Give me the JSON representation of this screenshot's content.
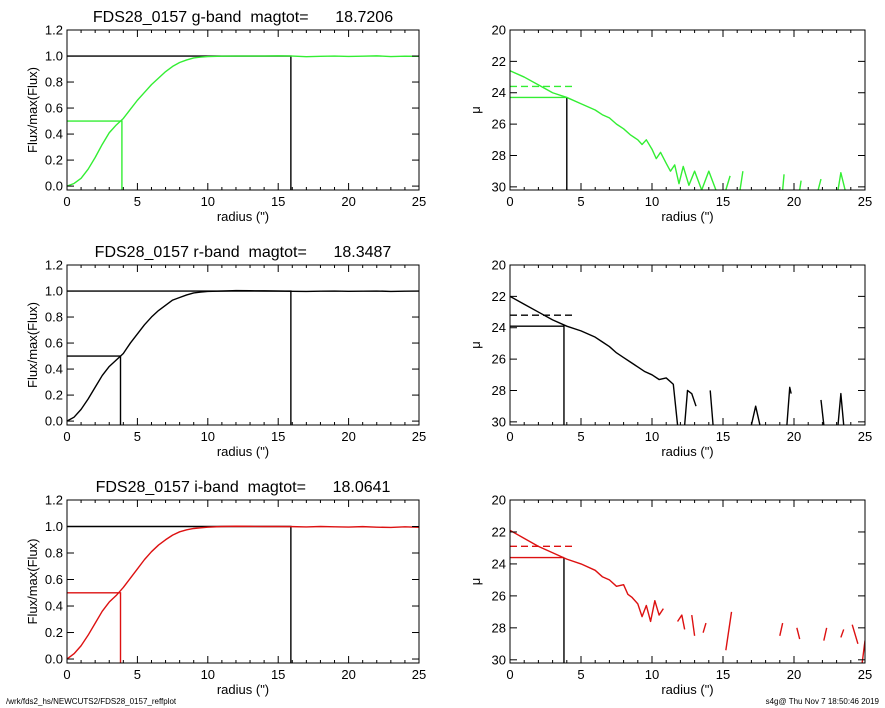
{
  "footer": {
    "path": "/wrk/fds2_hs/NEWCUTS2/FDS28_0157_reffplot",
    "stamp": "s4g@  Thu Nov  7 18:50:46 2019"
  },
  "chart_data": [
    {
      "type": "line",
      "title": "FDS28_0157 g-band  magtot=      18.7206",
      "xlabel": "radius (\")",
      "ylabel": "Flux/max(Flux)",
      "xlim": [
        0,
        25
      ],
      "ylim": [
        -0.03,
        1.2
      ],
      "xticks": [
        0,
        5,
        10,
        15,
        20,
        25
      ],
      "yticks": [
        0.0,
        0.2,
        0.4,
        0.6,
        0.8,
        1.0,
        1.2
      ],
      "ytick_labels": [
        "0.0",
        "0.2",
        "0.4",
        "0.6",
        "0.8",
        "1.0",
        "1.2"
      ],
      "color": "#33ee33",
      "series": [
        {
          "x": [
            0,
            0.5,
            1,
            1.5,
            2,
            2.5,
            3,
            3.5,
            4,
            4.5,
            5,
            5.5,
            6,
            6.5,
            7,
            7.5,
            8,
            8.5,
            9,
            9.5,
            10,
            11,
            12,
            13,
            14,
            15,
            16,
            17,
            18,
            19,
            20,
            21,
            22,
            23,
            24,
            25
          ],
          "y": [
            0,
            0.02,
            0.06,
            0.13,
            0.22,
            0.32,
            0.41,
            0.47,
            0.52,
            0.59,
            0.66,
            0.72,
            0.78,
            0.83,
            0.88,
            0.92,
            0.95,
            0.97,
            0.985,
            0.992,
            0.996,
            0.999,
            1.0,
            1.0,
            1.0,
            1.001,
            1.0,
            0.995,
            0.998,
            1.0,
            0.997,
            0.999,
            1.001,
            0.996,
            0.999,
            0.998
          ]
        }
      ],
      "reference_lines": [
        {
          "color": "#33ee33",
          "points": [
            [
              0,
              0.5
            ],
            [
              3.9,
              0.5
            ],
            [
              3.9,
              -0.03
            ]
          ]
        },
        {
          "color": "#000000",
          "points": [
            [
              0,
              1.0
            ],
            [
              15.9,
              1.0
            ],
            [
              15.9,
              -0.03
            ]
          ]
        }
      ]
    },
    {
      "type": "line",
      "xlabel": "radius (\")",
      "ylabel": "μ",
      "xlim": [
        0,
        25
      ],
      "ylim": [
        30.2,
        20
      ],
      "xticks": [
        0,
        5,
        10,
        15,
        20,
        25
      ],
      "yticks": [
        20,
        22,
        24,
        26,
        28,
        30
      ],
      "ytick_labels": [
        "20",
        "22",
        "24",
        "26",
        "28",
        "30"
      ],
      "color": "#33ee33",
      "series": [
        {
          "x": [
            0,
            1,
            2,
            3,
            4,
            5,
            6,
            6.5,
            7,
            7.5,
            8,
            8.5,
            9,
            9.3,
            9.6,
            10,
            10.3,
            10.6,
            11,
            11.3,
            11.6,
            11.9,
            12.2,
            12.6,
            13,
            13.5,
            14,
            14.5
          ],
          "y": [
            22.6,
            23.0,
            23.5,
            24.0,
            24.3,
            24.7,
            25.1,
            25.4,
            25.6,
            26.0,
            26.3,
            26.7,
            27.0,
            27.3,
            27.0,
            27.6,
            28.2,
            27.8,
            28.5,
            29.0,
            28.6,
            29.8,
            28.7,
            29.9,
            29.0,
            30.2,
            29.0,
            30.2
          ]
        },
        {
          "x": [
            15.2,
            15.5
          ],
          "y": [
            30.2,
            29.3
          ]
        },
        {
          "x": [
            16.2,
            16.4
          ],
          "y": [
            30.2,
            29.0
          ]
        },
        {
          "x": [
            19.2,
            19.3
          ],
          "y": [
            30.2,
            29.2
          ]
        },
        {
          "x": [
            20.4,
            20.5
          ],
          "y": [
            30.2,
            29.6
          ]
        },
        {
          "x": [
            21.7,
            21.9
          ],
          "y": [
            30.2,
            29.5
          ]
        },
        {
          "x": [
            23.1,
            23.3,
            23.6
          ],
          "y": [
            30.2,
            29.1,
            30.2
          ]
        }
      ],
      "reference_lines": [
        {
          "color": "#33ee33",
          "points": [
            [
              0,
              24.3
            ],
            [
              4.0,
              24.3
            ]
          ]
        },
        {
          "color": "#000000",
          "points": [
            [
              4.0,
              24.3
            ],
            [
              4.0,
              30.2
            ]
          ]
        },
        {
          "color": "#33ee33",
          "dashed": true,
          "points": [
            [
              0,
              23.6
            ],
            [
              4.5,
              23.6
            ]
          ]
        }
      ]
    },
    {
      "type": "line",
      "title": "FDS28_0157 r-band  magtot=      18.3487",
      "xlabel": "radius (\")",
      "ylabel": "Flux/max(Flux)",
      "xlim": [
        0,
        25
      ],
      "ylim": [
        -0.03,
        1.2
      ],
      "xticks": [
        0,
        5,
        10,
        15,
        20,
        25
      ],
      "yticks": [
        0.0,
        0.2,
        0.4,
        0.6,
        0.8,
        1.0,
        1.2
      ],
      "ytick_labels": [
        "0.0",
        "0.2",
        "0.4",
        "0.6",
        "0.8",
        "1.0",
        "1.2"
      ],
      "color": "#000000",
      "series": [
        {
          "x": [
            0,
            0.5,
            1,
            1.5,
            2,
            2.5,
            3,
            3.5,
            4,
            4.5,
            5,
            5.5,
            6,
            6.5,
            7,
            7.5,
            8,
            8.5,
            9,
            9.5,
            10,
            11,
            12,
            13,
            14,
            15,
            16,
            17,
            18,
            19,
            20,
            21,
            22,
            23,
            24,
            25
          ],
          "y": [
            0,
            0.03,
            0.09,
            0.17,
            0.26,
            0.35,
            0.42,
            0.47,
            0.52,
            0.6,
            0.67,
            0.74,
            0.8,
            0.85,
            0.89,
            0.93,
            0.95,
            0.97,
            0.985,
            0.992,
            0.997,
            1.0,
            1.003,
            1.002,
            1.001,
            1.0,
            0.998,
            0.997,
            0.999,
            1.0,
            0.998,
            0.999,
            1.0,
            0.997,
            0.999,
            1.0
          ]
        }
      ],
      "reference_lines": [
        {
          "color": "#000000",
          "points": [
            [
              0,
              0.5
            ],
            [
              3.8,
              0.5
            ],
            [
              3.8,
              -0.03
            ]
          ]
        },
        {
          "color": "#000000",
          "points": [
            [
              0,
              1.0
            ],
            [
              15.9,
              1.0
            ],
            [
              15.9,
              -0.03
            ]
          ]
        }
      ]
    },
    {
      "type": "line",
      "xlabel": "radius (\")",
      "ylabel": "μ",
      "xlim": [
        0,
        25
      ],
      "ylim": [
        30.2,
        20
      ],
      "xticks": [
        0,
        5,
        10,
        15,
        20,
        25
      ],
      "yticks": [
        20,
        22,
        24,
        26,
        28,
        30
      ],
      "ytick_labels": [
        "20",
        "22",
        "24",
        "26",
        "28",
        "30"
      ],
      "color": "#000000",
      "series": [
        {
          "x": [
            0,
            1,
            2,
            3,
            4,
            5,
            6,
            6.5,
            7,
            7.5,
            8,
            8.5,
            9,
            9.5,
            10,
            10.5,
            11,
            11.5,
            11.8
          ],
          "y": [
            22.0,
            22.5,
            23.0,
            23.5,
            23.9,
            24.2,
            24.6,
            24.9,
            25.2,
            25.6,
            25.9,
            26.2,
            26.5,
            26.8,
            27.0,
            27.3,
            27.2,
            27.6,
            30.2
          ]
        },
        {
          "x": [
            12.3,
            12.5,
            12.8,
            13.1
          ],
          "y": [
            30.2,
            28.0,
            28.2,
            29.0
          ]
        },
        {
          "x": [
            14.1,
            14.3
          ],
          "y": [
            28.0,
            30.2
          ]
        },
        {
          "x": [
            17.0,
            17.3,
            17.6
          ],
          "y": [
            30.2,
            29.0,
            30.2
          ]
        },
        {
          "x": [
            19.5,
            19.7,
            19.8
          ],
          "y": [
            30.2,
            27.8,
            28.2
          ]
        },
        {
          "x": [
            21.9,
            22.1
          ],
          "y": [
            28.6,
            30.2
          ]
        },
        {
          "x": [
            23.1,
            23.3,
            23.5
          ],
          "y": [
            30.2,
            28.2,
            30.2
          ]
        }
      ],
      "reference_lines": [
        {
          "color": "#000000",
          "points": [
            [
              0,
              23.9
            ],
            [
              3.8,
              23.9
            ],
            [
              3.8,
              30.2
            ]
          ]
        },
        {
          "color": "#000000",
          "dashed": true,
          "points": [
            [
              0,
              23.2
            ],
            [
              4.5,
              23.2
            ]
          ]
        }
      ]
    },
    {
      "type": "line",
      "title": "FDS28_0157 i-band  magtot=      18.0641",
      "xlabel": "radius (\")",
      "ylabel": "Flux/max(Flux)",
      "xlim": [
        0,
        25
      ],
      "ylim": [
        -0.03,
        1.2
      ],
      "xticks": [
        0,
        5,
        10,
        15,
        20,
        25
      ],
      "yticks": [
        0.0,
        0.2,
        0.4,
        0.6,
        0.8,
        1.0,
        1.2
      ],
      "ytick_labels": [
        "0.0",
        "0.2",
        "0.4",
        "0.6",
        "0.8",
        "1.0",
        "1.2"
      ],
      "color": "#dd1111",
      "series": [
        {
          "x": [
            0,
            0.5,
            1,
            1.5,
            2,
            2.5,
            3,
            3.5,
            4,
            4.5,
            5,
            5.5,
            6,
            6.5,
            7,
            7.5,
            8,
            8.5,
            9,
            9.5,
            10,
            11,
            12,
            13,
            14,
            15,
            16,
            17,
            18,
            19,
            20,
            21,
            22,
            23,
            24,
            25
          ],
          "y": [
            0,
            0.04,
            0.1,
            0.18,
            0.27,
            0.36,
            0.43,
            0.48,
            0.54,
            0.61,
            0.68,
            0.75,
            0.81,
            0.86,
            0.9,
            0.935,
            0.96,
            0.975,
            0.985,
            0.99,
            0.995,
            1.0,
            1.002,
            1.001,
            1.0,
            1.0,
            0.999,
            0.997,
            1.0,
            0.998,
            0.996,
            0.999,
            0.995,
            0.993,
            0.998,
            0.994
          ]
        }
      ],
      "reference_lines": [
        {
          "color": "#dd1111",
          "points": [
            [
              0,
              0.5
            ],
            [
              3.8,
              0.5
            ],
            [
              3.8,
              -0.03
            ]
          ]
        },
        {
          "color": "#000000",
          "points": [
            [
              0,
              1.0
            ],
            [
              15.9,
              1.0
            ],
            [
              15.9,
              -0.03
            ]
          ]
        }
      ]
    },
    {
      "type": "line",
      "xlabel": "radius (\")",
      "ylabel": "μ",
      "xlim": [
        0,
        25
      ],
      "ylim": [
        30.2,
        20
      ],
      "xticks": [
        0,
        5,
        10,
        15,
        20,
        25
      ],
      "yticks": [
        20,
        22,
        24,
        26,
        28,
        30
      ],
      "ytick_labels": [
        "20",
        "22",
        "24",
        "26",
        "28",
        "30"
      ],
      "color": "#dd1111",
      "series": [
        {
          "x": [
            0,
            1,
            2,
            3,
            4,
            5,
            6,
            6.5,
            7,
            7.5,
            8,
            8.3,
            8.6,
            9,
            9.3,
            9.6,
            9.9,
            10.2,
            10.5,
            10.8
          ],
          "y": [
            21.9,
            22.4,
            22.9,
            23.3,
            23.7,
            24.0,
            24.4,
            24.8,
            25.0,
            25.4,
            25.3,
            25.9,
            26.1,
            26.5,
            27.3,
            26.6,
            27.6,
            26.3,
            27.2,
            26.8
          ]
        },
        {
          "x": [
            11.8,
            12.1,
            12.3
          ],
          "y": [
            27.6,
            27.2,
            28.1
          ]
        },
        {
          "x": [
            12.8,
            13.0
          ],
          "y": [
            27.2,
            28.5
          ]
        },
        {
          "x": [
            13.6,
            13.8
          ],
          "y": [
            28.3,
            27.7
          ]
        },
        {
          "x": [
            15.2,
            15.6
          ],
          "y": [
            29.4,
            27.0
          ]
        },
        {
          "x": [
            19.0,
            19.2
          ],
          "y": [
            28.5,
            27.7
          ]
        },
        {
          "x": [
            20.2,
            20.4
          ],
          "y": [
            28.0,
            28.7
          ]
        },
        {
          "x": [
            22.1,
            22.3
          ],
          "y": [
            28.8,
            28.0
          ]
        },
        {
          "x": [
            23.3,
            23.5
          ],
          "y": [
            28.6,
            28.1
          ]
        },
        {
          "x": [
            24.1,
            24.5
          ],
          "y": [
            27.8,
            29.0
          ]
        },
        {
          "x": [
            24.8,
            25.0
          ],
          "y": [
            30.2,
            28.8
          ]
        }
      ],
      "reference_lines": [
        {
          "color": "#dd1111",
          "points": [
            [
              0,
              23.6
            ],
            [
              3.8,
              23.6
            ]
          ]
        },
        {
          "color": "#000000",
          "points": [
            [
              3.8,
              23.6
            ],
            [
              3.8,
              30.2
            ]
          ]
        },
        {
          "color": "#dd1111",
          "dashed": true,
          "points": [
            [
              0,
              22.9
            ],
            [
              4.5,
              22.9
            ]
          ]
        }
      ]
    }
  ]
}
